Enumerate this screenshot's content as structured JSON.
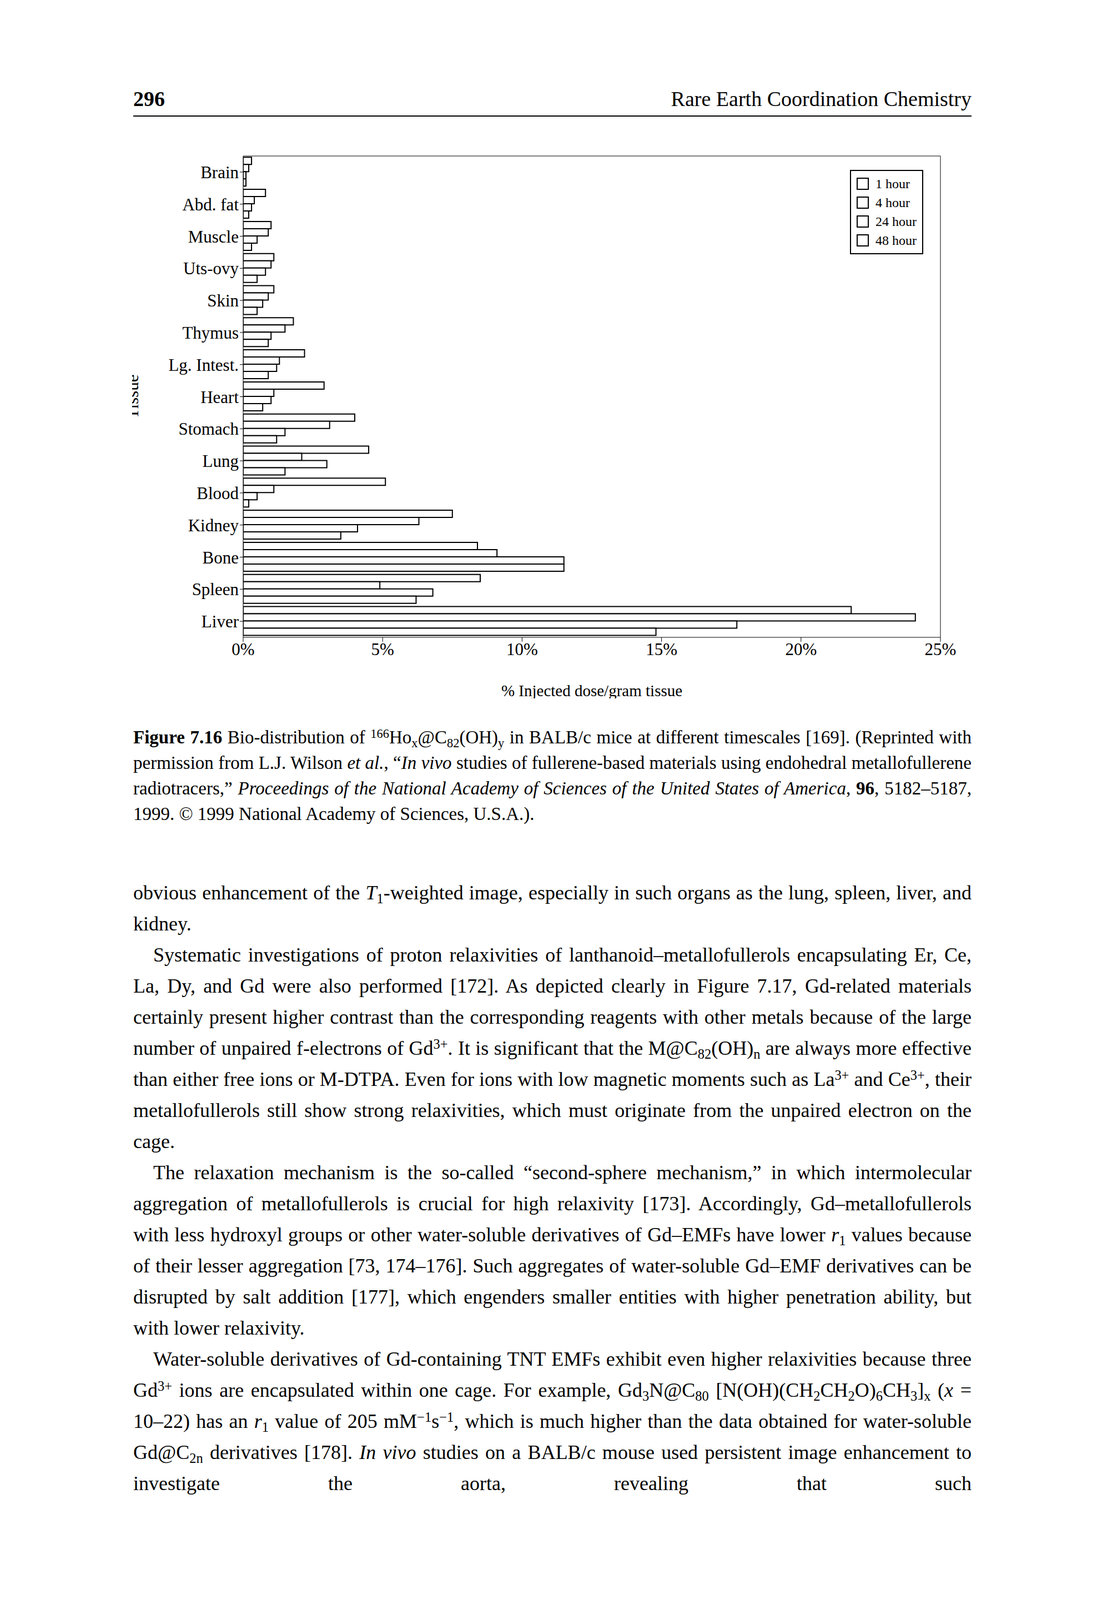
{
  "header": {
    "page": "296",
    "title": "Rare Earth Coordination Chemistry"
  },
  "chart_data": {
    "type": "bar",
    "orientation": "horizontal",
    "legend": "upper right",
    "x_label": "% Injected dose/gram tissue",
    "y_label": "Tissue",
    "categories": [
      "Brain",
      "Abd. fat",
      "Muscle",
      "Uts-ovy",
      "Skin",
      "Thymus",
      "Lg. Intest.",
      "Heart",
      "Stomach",
      "Lung",
      "Blood",
      "Kidney",
      "Bone",
      "Spleen",
      "Liver"
    ],
    "series": [
      {
        "name": "1 hour",
        "color": "#ffffff",
        "values": [
          0.3,
          0.8,
          1.0,
          1.1,
          1.1,
          1.8,
          2.2,
          2.9,
          4.0,
          4.5,
          5.1,
          7.5,
          8.4,
          8.5,
          21.8
        ]
      },
      {
        "name": "4 hour",
        "color": "#ffffff",
        "values": [
          0.2,
          0.4,
          0.9,
          1.0,
          0.9,
          1.5,
          1.3,
          1.1,
          3.1,
          2.1,
          1.1,
          6.3,
          9.1,
          4.9,
          24.1
        ]
      },
      {
        "name": "24 hour",
        "color": "#ffffff",
        "values": [
          0.1,
          0.3,
          0.5,
          0.8,
          0.7,
          1.0,
          1.2,
          1.0,
          1.5,
          3.0,
          0.5,
          4.1,
          11.5,
          6.8,
          17.7
        ]
      },
      {
        "name": "48 hour",
        "color": "#ffffff",
        "values": [
          0.1,
          0.2,
          0.3,
          0.5,
          0.5,
          0.9,
          0.9,
          0.7,
          1.2,
          1.5,
          0.2,
          3.5,
          11.5,
          6.2,
          14.8
        ]
      }
    ],
    "xlim": [
      0,
      25
    ],
    "xticks": [
      {
        "value": 0,
        "label": "0%"
      },
      {
        "value": 5,
        "label": "5%"
      },
      {
        "value": 10,
        "label": "10%"
      },
      {
        "value": 15,
        "label": "15%"
      },
      {
        "value": 20,
        "label": "20%"
      },
      {
        "value": 25,
        "label": "25%"
      }
    ]
  },
  "caption": [
    {
      "b": "Figure 7.16"
    },
    " Bio-distribution of ",
    {
      "sup": "166"
    },
    "Ho",
    {
      "sub": "x"
    },
    "@C",
    {
      "sub": "82"
    },
    "(OH)",
    {
      "sub": "y"
    },
    " in BALB/c mice at different timescales [169]. (Reprinted with permission from L.J. Wilson ",
    {
      "i": "et al."
    },
    ", “",
    {
      "i": "In vivo"
    },
    " studies of fullerene-based materials using endohedral metallofullerene radiotracers,” ",
    {
      "i": "Proceedings of the National Academy of Sciences of the United States of America"
    },
    ", ",
    {
      "b": "96"
    },
    ", 5182–5187, 1999. © 1999 National Academy of Sciences, U.S.A.)."
  ],
  "body": [
    [
      "obvious enhancement of the ",
      {
        "i": "T"
      },
      {
        "sub": "1"
      },
      "-weighted image, especially in such organs as the lung, spleen, liver, and kidney."
    ],
    [
      "Systematic investigations of proton relaxivities of lanthanoid–metallofullerols encapsulating Er, Ce, La, Dy, and Gd were also performed [172]. As depicted clearly in Figure 7.17, Gd-related materials certainly present higher contrast than the corresponding reagents with other metals because of the large number of unpaired f-electrons of Gd",
      {
        "sup": "3+"
      },
      ". It is significant that the M@C",
      {
        "sub": "82"
      },
      "(OH)",
      {
        "sub": "n"
      },
      " are always more effective than either free ions or M-DTPA. Even for ions with low magnetic moments such as La",
      {
        "sup": "3+"
      },
      " and Ce",
      {
        "sup": "3+"
      },
      ", their metallofullerols still show strong relaxivities, which must originate from the unpaired electron on the cage."
    ],
    [
      "The relaxation mechanism is the so-called “second-sphere mechanism,” in which intermolecular aggregation of metallofullerols is crucial for high relaxivity [173]. Accordingly, Gd–metallofullerols with less hydroxyl groups or other water-soluble derivatives of Gd–EMFs have lower ",
      {
        "i": "r"
      },
      {
        "sub": "1"
      },
      " values because of their lesser aggregation [73, 174–176]. Such aggregates of water-soluble Gd–EMF derivatives can be disrupted by salt addition [177], which engenders smaller entities with higher penetration ability, but with lower relaxivity."
    ],
    [
      "Water-soluble derivatives of Gd-containing TNT EMFs exhibit even higher relaxivities because three Gd",
      {
        "sup": "3+"
      },
      " ions are encapsulated within one cage. For example, Gd",
      {
        "sub": "3"
      },
      "N@C",
      {
        "sub": "80"
      },
      " [N(OH)(CH",
      {
        "sub": "2"
      },
      "CH",
      {
        "sub": "2"
      },
      "O)",
      {
        "sub": "6"
      },
      "CH",
      {
        "sub": "3"
      },
      "]",
      {
        "sub": "x"
      },
      " (",
      {
        "i": "x"
      },
      " = 10–22) has an ",
      {
        "i": "r"
      },
      {
        "sub": "1"
      },
      " value of 205 mM",
      {
        "sup": "−1"
      },
      "s",
      {
        "sup": "−1"
      },
      ", which is much higher than the data obtained for water-soluble Gd@C",
      {
        "sub": "2n"
      },
      " derivatives [178]. ",
      {
        "i": "In vivo"
      },
      " studies on a BALB/c mouse used persistent image enhancement to investigate the aorta, revealing that such"
    ]
  ]
}
